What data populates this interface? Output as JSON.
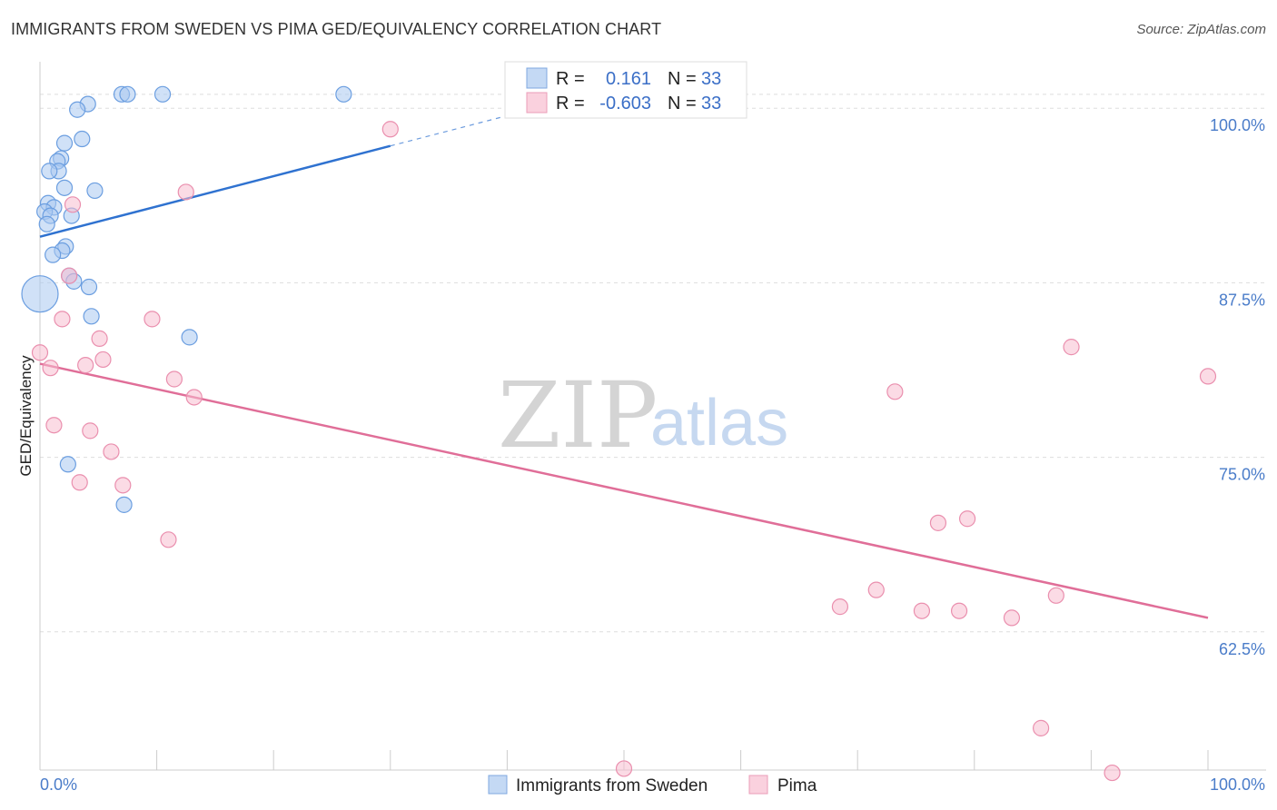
{
  "title": "IMMIGRANTS FROM SWEDEN VS PIMA GED/EQUIVALENCY CORRELATION CHART",
  "source": "Source: ZipAtlas.com",
  "watermark": {
    "zip": "ZIP",
    "atlas": "atlas"
  },
  "colors": {
    "blue_fill": "#a9c8f0",
    "blue_stroke": "#6b9ee0",
    "blue_line": "#2f72d0",
    "pink_fill": "#f7bdd0",
    "pink_stroke": "#ea8fae",
    "pink_line": "#e06e98",
    "grid": "#dddddd",
    "axis": "#cccccc",
    "tick_text": "#4a7cc9"
  },
  "legend": {
    "r_label": "R =",
    "n_label": "N =",
    "blue": {
      "r": "0.161",
      "n": "33"
    },
    "pink": {
      "r": "-0.603",
      "n": "33"
    }
  },
  "bottom_legend": [
    "Immigrants from Sweden",
    "Pima"
  ],
  "chart_data": {
    "type": "scatter",
    "title": "IMMIGRANTS FROM SWEDEN VS PIMA GED/EQUIVALENCY CORRELATION CHART",
    "xlabel": "",
    "ylabel": "GED/Equivalency",
    "xlim": [
      0,
      100
    ],
    "ylim": [
      52.6,
      103.2
    ],
    "x_tick_labels": [
      "0.0%",
      "100.0%"
    ],
    "y_ticks": [
      {
        "value": 100.0,
        "label": "100.0%"
      },
      {
        "value": 87.5,
        "label": "87.5%"
      },
      {
        "value": 75.0,
        "label": "75.0%"
      },
      {
        "value": 62.5,
        "label": "62.5%"
      }
    ],
    "grid": true,
    "series": [
      {
        "name": "Immigrants from Sweden",
        "color": "blue",
        "r": 0.161,
        "n": 33,
        "trend": {
          "x0": 0,
          "y0": 90.8,
          "x1": 30,
          "y1": 97.3,
          "dash_to_x": 42,
          "dash_to_y": 99.9
        },
        "points": [
          {
            "x": 7.0,
            "y": 101.0,
            "s": 1
          },
          {
            "x": 7.5,
            "y": 101.0,
            "s": 1
          },
          {
            "x": 10.5,
            "y": 101.0,
            "s": 1
          },
          {
            "x": 26.0,
            "y": 101.0,
            "s": 1
          },
          {
            "x": 4.1,
            "y": 100.3,
            "s": 1
          },
          {
            "x": 3.2,
            "y": 99.9,
            "s": 1
          },
          {
            "x": 3.6,
            "y": 97.8,
            "s": 1
          },
          {
            "x": 2.1,
            "y": 97.5,
            "s": 1
          },
          {
            "x": 1.8,
            "y": 96.4,
            "s": 1
          },
          {
            "x": 1.5,
            "y": 96.2,
            "s": 1
          },
          {
            "x": 1.6,
            "y": 95.5,
            "s": 1
          },
          {
            "x": 0.8,
            "y": 95.5,
            "s": 1
          },
          {
            "x": 2.1,
            "y": 94.3,
            "s": 1
          },
          {
            "x": 4.7,
            "y": 94.1,
            "s": 1
          },
          {
            "x": 0.7,
            "y": 93.2,
            "s": 1
          },
          {
            "x": 1.2,
            "y": 92.9,
            "s": 1
          },
          {
            "x": 0.4,
            "y": 92.6,
            "s": 1
          },
          {
            "x": 0.9,
            "y": 92.3,
            "s": 1
          },
          {
            "x": 2.7,
            "y": 92.3,
            "s": 1
          },
          {
            "x": 0.6,
            "y": 91.7,
            "s": 1
          },
          {
            "x": 2.2,
            "y": 90.1,
            "s": 1
          },
          {
            "x": 1.9,
            "y": 89.8,
            "s": 1
          },
          {
            "x": 1.1,
            "y": 89.5,
            "s": 1
          },
          {
            "x": 2.5,
            "y": 88.0,
            "s": 1
          },
          {
            "x": 2.9,
            "y": 87.6,
            "s": 1
          },
          {
            "x": 4.2,
            "y": 87.2,
            "s": 1
          },
          {
            "x": 0.0,
            "y": 86.7,
            "s": 2
          },
          {
            "x": 4.4,
            "y": 85.1,
            "s": 1
          },
          {
            "x": 12.8,
            "y": 83.6,
            "s": 1
          },
          {
            "x": 2.4,
            "y": 74.5,
            "s": 1
          },
          {
            "x": 7.2,
            "y": 71.6,
            "s": 1
          }
        ]
      },
      {
        "name": "Pima",
        "color": "pink",
        "r": -0.603,
        "n": 33,
        "trend": {
          "x0": 0,
          "y0": 81.7,
          "x1": 100,
          "y1": 63.5
        },
        "points": [
          {
            "x": 30.0,
            "y": 98.5,
            "s": 1
          },
          {
            "x": 12.5,
            "y": 94.0,
            "s": 1
          },
          {
            "x": 2.8,
            "y": 93.1,
            "s": 1
          },
          {
            "x": 2.5,
            "y": 88.0,
            "s": 1
          },
          {
            "x": 1.9,
            "y": 84.9,
            "s": 1
          },
          {
            "x": 9.6,
            "y": 84.9,
            "s": 1
          },
          {
            "x": 5.1,
            "y": 83.5,
            "s": 1
          },
          {
            "x": 88.3,
            "y": 82.9,
            "s": 1
          },
          {
            "x": 0.0,
            "y": 82.5,
            "s": 1
          },
          {
            "x": 5.4,
            "y": 82.0,
            "s": 1
          },
          {
            "x": 3.9,
            "y": 81.6,
            "s": 1
          },
          {
            "x": 0.9,
            "y": 81.4,
            "s": 1
          },
          {
            "x": 100.0,
            "y": 80.8,
            "s": 1
          },
          {
            "x": 11.5,
            "y": 80.6,
            "s": 1
          },
          {
            "x": 73.2,
            "y": 79.7,
            "s": 1
          },
          {
            "x": 13.2,
            "y": 79.3,
            "s": 1
          },
          {
            "x": 1.2,
            "y": 77.3,
            "s": 1
          },
          {
            "x": 4.3,
            "y": 76.9,
            "s": 1
          },
          {
            "x": 6.1,
            "y": 75.4,
            "s": 1
          },
          {
            "x": 7.1,
            "y": 73.0,
            "s": 1
          },
          {
            "x": 3.4,
            "y": 73.2,
            "s": 1
          },
          {
            "x": 76.9,
            "y": 70.3,
            "s": 1
          },
          {
            "x": 79.4,
            "y": 70.6,
            "s": 1
          },
          {
            "x": 11.0,
            "y": 69.1,
            "s": 1
          },
          {
            "x": 71.6,
            "y": 65.5,
            "s": 1
          },
          {
            "x": 87.0,
            "y": 65.1,
            "s": 1
          },
          {
            "x": 68.5,
            "y": 64.3,
            "s": 1
          },
          {
            "x": 75.5,
            "y": 64.0,
            "s": 1
          },
          {
            "x": 78.7,
            "y": 64.0,
            "s": 1
          },
          {
            "x": 83.2,
            "y": 63.5,
            "s": 1
          },
          {
            "x": 85.7,
            "y": 55.6,
            "s": 1
          },
          {
            "x": 50.0,
            "y": 52.7,
            "s": 1
          },
          {
            "x": 91.8,
            "y": 52.4,
            "s": 1
          }
        ]
      }
    ]
  }
}
